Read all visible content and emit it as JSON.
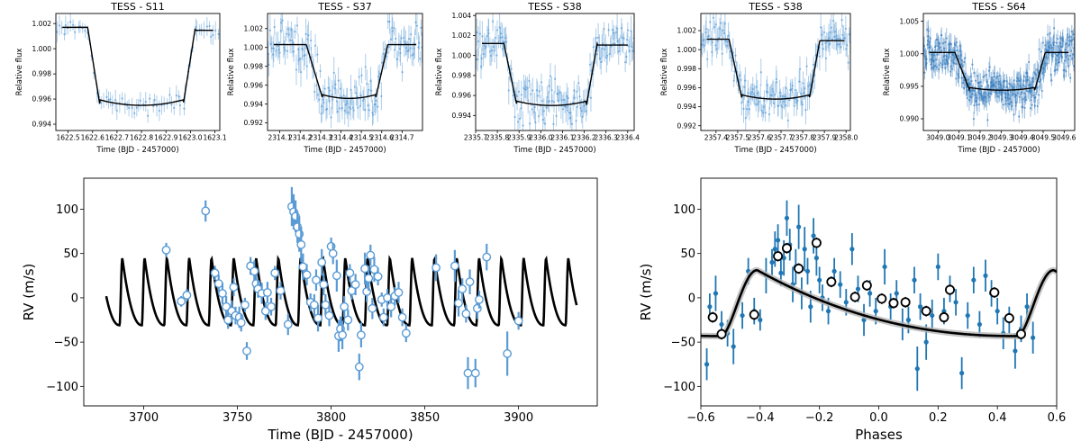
{
  "figure": {
    "description_label": "TESS transit light curves and radial velocity fits"
  },
  "chart_data": [
    {
      "id": "lc_s11",
      "type": "scatter",
      "title": "TESS - S11",
      "xlabel": "Time (BJD - 2457000)",
      "ylabel": "Relative flux",
      "xlim": [
        1622.45,
        1623.12
      ],
      "ylim": [
        0.9935,
        1.0028
      ],
      "xticks": [
        1622.5,
        1622.6,
        1622.7,
        1622.8,
        1622.9,
        1623.0,
        1623.1
      ],
      "xtick_labels": [
        "1622.5",
        "1622.6",
        "1622.7",
        "1622.8",
        "1622.9",
        "1623.0",
        "1623.1"
      ],
      "yticks": [
        0.994,
        0.996,
        0.998,
        1.0,
        1.002
      ],
      "ytick_labels": [
        "0.994",
        "0.996",
        "0.998",
        "1.000",
        "1.002"
      ],
      "model": {
        "baseline": 1.0017,
        "depth": 0.0062,
        "t1": 1622.58,
        "t2": 1622.63,
        "t3": 1622.97,
        "t4": 1623.02,
        "slope": -0.0012
      },
      "data_density": 70,
      "noise": 0.00035,
      "err": 0.0006,
      "marker_color": "#5a9bd5"
    },
    {
      "id": "lc_s37",
      "type": "scatter",
      "title": "TESS - S37",
      "xlabel": "Time (BJD - 2457000)",
      "ylabel": "Relative flux",
      "xlim": [
        2314.04,
        2314.8
      ],
      "ylim": [
        0.9912,
        1.0036
      ],
      "xticks": [
        2314.1,
        2314.2,
        2314.3,
        2314.4,
        2314.5,
        2314.6,
        2314.7
      ],
      "xtick_labels": [
        "2314.1",
        "2314.2",
        "2314.3",
        "2314.4",
        "2314.5",
        "2314.6",
        "2314.7"
      ],
      "yticks": [
        0.992,
        0.994,
        0.996,
        0.998,
        1.0,
        1.002
      ],
      "ytick_labels": [
        "0.992",
        "0.994",
        "0.996",
        "0.998",
        "1.000",
        "1.002"
      ],
      "model": {
        "baseline": 1.0003,
        "depth": 0.0057,
        "t1": 2314.23,
        "t2": 2314.31,
        "t3": 2314.57,
        "t4": 2314.63,
        "slope": 0.0
      },
      "data_density": 160,
      "noise": 0.0012,
      "err": 0.0012,
      "marker_color": "#5a9bd5"
    },
    {
      "id": "lc_s38a",
      "type": "scatter",
      "title": "TESS - S38",
      "xlabel": "Time (BJD - 2457000)",
      "ylabel": "Relative flux",
      "xlim": [
        2335.7,
        2336.43
      ],
      "ylim": [
        0.9925,
        1.0042
      ],
      "xticks": [
        2335.7,
        2335.8,
        2335.9,
        2336.0,
        2336.1,
        2336.2,
        2336.3,
        2336.4
      ],
      "xtick_labels": [
        "2335.7",
        "2335.8",
        "2335.9",
        "2336.0",
        "2336.1",
        "2336.2",
        "2336.3",
        "2336.4"
      ],
      "yticks": [
        0.994,
        0.996,
        0.998,
        1.0,
        1.002,
        1.004
      ],
      "ytick_labels": [
        "0.994",
        "0.996",
        "0.998",
        "1.000",
        "1.002",
        "1.004"
      ],
      "model": {
        "baseline": 1.0012,
        "depth": 0.0062,
        "t1": 2335.83,
        "t2": 2335.89,
        "t3": 2336.21,
        "t4": 2336.26,
        "slope": -0.0008
      },
      "data_density": 170,
      "noise": 0.0011,
      "err": 0.0011,
      "marker_color": "#5a9bd5"
    },
    {
      "id": "lc_s38b",
      "type": "scatter",
      "title": "TESS - S38",
      "xlabel": "Time (BJD - 2457000)",
      "ylabel": "Relative flux",
      "xlim": [
        2357.33,
        2358.02
      ],
      "ylim": [
        0.9915,
        1.0038
      ],
      "xticks": [
        2357.4,
        2357.5,
        2357.6,
        2357.7,
        2357.8,
        2357.9,
        2358.0
      ],
      "xtick_labels": [
        "2357.4",
        "2357.5",
        "2357.6",
        "2357.7",
        "2357.8",
        "2357.9",
        "2358.0"
      ],
      "yticks": [
        0.992,
        0.994,
        0.996,
        0.998,
        1.0,
        1.002
      ],
      "ytick_labels": [
        "0.992",
        "0.994",
        "0.996",
        "0.998",
        "1.000",
        "1.002"
      ],
      "model": {
        "baseline": 1.0011,
        "depth": 0.0063,
        "t1": 2357.46,
        "t2": 2357.52,
        "t3": 2357.83,
        "t4": 2357.88,
        "slope": -0.0008
      },
      "data_density": 170,
      "noise": 0.0011,
      "err": 0.0011,
      "marker_color": "#5a9bd5"
    },
    {
      "id": "lc_s64",
      "type": "scatter",
      "title": "TESS - S64",
      "xlabel": "Time (BJD - 2457000)",
      "ylabel": "Relative flux",
      "xlim": [
        3048.93,
        3049.65
      ],
      "ylim": [
        0.9882,
        1.0062
      ],
      "xticks": [
        3049.0,
        3049.1,
        3049.2,
        3049.3,
        3049.4,
        3049.5,
        3049.6
      ],
      "xtick_labels": [
        "3049.0",
        "3049.1",
        "3049.2",
        "3049.3",
        "3049.4",
        "3049.5",
        "3049.6"
      ],
      "yticks": [
        0.99,
        0.995,
        1.0,
        1.005
      ],
      "ytick_labels": [
        "0.990",
        "0.995",
        "1.000",
        "1.005"
      ],
      "model": {
        "baseline": 1.0002,
        "depth": 0.0058,
        "t1": 3049.08,
        "t2": 3049.15,
        "t3": 3049.46,
        "t4": 3049.51,
        "slope": 0.0
      },
      "data_density": 420,
      "noise": 0.0017,
      "err": 0.0012,
      "marker_color": "#3c7fbf"
    },
    {
      "id": "rv_time",
      "type": "scatter",
      "title": "",
      "xlabel": "Time (BJD - 2457000)",
      "ylabel": "RV (m/s)",
      "xlim": [
        3668,
        3942
      ],
      "ylim": [
        -122,
        135
      ],
      "xticks": [
        3700,
        3750,
        3800,
        3850,
        3900
      ],
      "xtick_labels": [
        "3700",
        "3750",
        "3800",
        "3850",
        "3900"
      ],
      "yticks": [
        -100,
        -50,
        0,
        50,
        100
      ],
      "ytick_labels": [
        "−100",
        "−50",
        "0",
        "50",
        "100"
      ],
      "model": {
        "period": 11.9,
        "t_peak": 3690.0,
        "amp": 38,
        "offset": 7,
        "xstart": 3680,
        "xend": 3931
      },
      "points": [
        [
          3712,
          54,
          8
        ],
        [
          3720,
          -4,
          6
        ],
        [
          3723,
          3,
          7
        ],
        [
          3733,
          98,
          12
        ],
        [
          3738,
          28,
          8
        ],
        [
          3740,
          16,
          10
        ],
        [
          3742,
          5,
          12
        ],
        [
          3744,
          -10,
          12
        ],
        [
          3745,
          -25,
          10
        ],
        [
          3747,
          -15,
          12
        ],
        [
          3748,
          12,
          10
        ],
        [
          3749,
          -20,
          10
        ],
        [
          3751,
          -22,
          12
        ],
        [
          3752,
          -28,
          10
        ],
        [
          3754,
          -8,
          8
        ],
        [
          3755,
          -60,
          10
        ],
        [
          3757,
          36,
          10
        ],
        [
          3759,
          30,
          12
        ],
        [
          3760,
          16,
          10
        ],
        [
          3761,
          10,
          10
        ],
        [
          3763,
          5,
          12
        ],
        [
          3765,
          -15,
          10
        ],
        [
          3766,
          6,
          12
        ],
        [
          3768,
          -10,
          10
        ],
        [
          3770,
          28,
          8
        ],
        [
          3773,
          8,
          10
        ],
        [
          3777,
          -30,
          12
        ],
        [
          3779,
          103,
          22
        ],
        [
          3780,
          97,
          20
        ],
        [
          3781,
          92,
          18
        ],
        [
          3782,
          80,
          18
        ],
        [
          3783,
          72,
          20
        ],
        [
          3784,
          60,
          20
        ],
        [
          3785,
          35,
          15
        ],
        [
          3787,
          26,
          12
        ],
        [
          3789,
          -5,
          10
        ],
        [
          3791,
          -8,
          12
        ],
        [
          3792,
          20,
          12
        ],
        [
          3793,
          -23,
          15
        ],
        [
          3795,
          40,
          15
        ],
        [
          3796,
          15,
          12
        ],
        [
          3797,
          -8,
          12
        ],
        [
          3799,
          -20,
          12
        ],
        [
          3800,
          58,
          10
        ],
        [
          3801,
          50,
          12
        ],
        [
          3803,
          25,
          18
        ],
        [
          3804,
          -43,
          18
        ],
        [
          3805,
          -35,
          14
        ],
        [
          3806,
          -42,
          16
        ],
        [
          3807,
          -10,
          12
        ],
        [
          3809,
          -25,
          12
        ],
        [
          3810,
          28,
          10
        ],
        [
          3811,
          8,
          10
        ],
        [
          3813,
          15,
          12
        ],
        [
          3815,
          -78,
          15
        ],
        [
          3816,
          -42,
          14
        ],
        [
          3818,
          33,
          18
        ],
        [
          3819,
          7,
          12
        ],
        [
          3820,
          22,
          14
        ],
        [
          3821,
          48,
          12
        ],
        [
          3822,
          -12,
          12
        ],
        [
          3823,
          32,
          14
        ],
        [
          3825,
          24,
          10
        ],
        [
          3827,
          -2,
          8
        ],
        [
          3828,
          -22,
          10
        ],
        [
          3830,
          0,
          10
        ],
        [
          3832,
          -10,
          12
        ],
        [
          3834,
          2,
          10
        ],
        [
          3836,
          6,
          12
        ],
        [
          3838,
          -22,
          10
        ],
        [
          3840,
          -40,
          10
        ],
        [
          3856,
          34,
          15
        ],
        [
          3866,
          36,
          18
        ],
        [
          3868,
          -6,
          15
        ],
        [
          3870,
          10,
          12
        ],
        [
          3872,
          -18,
          10
        ],
        [
          3873,
          -85,
          18
        ],
        [
          3874,
          18,
          14
        ],
        [
          3877,
          -85,
          16
        ],
        [
          3878,
          -12,
          12
        ],
        [
          3879,
          -2,
          10
        ],
        [
          3883,
          46,
          15
        ],
        [
          3894,
          -63,
          25
        ],
        [
          3900,
          -26,
          10
        ]
      ],
      "marker_color": "#5a9bd5"
    },
    {
      "id": "rv_phase",
      "type": "scatter",
      "title": "",
      "xlabel": "Phases",
      "ylabel": "RV (m/s)",
      "xlim": [
        -0.6,
        0.6
      ],
      "ylim": [
        -122,
        135
      ],
      "xticks": [
        -0.6,
        -0.4,
        -0.2,
        0.0,
        0.2,
        0.4,
        0.6
      ],
      "xtick_labels": [
        "−0.6",
        "−0.4",
        "−0.2",
        "0.0",
        "0.2",
        "0.4",
        "0.6"
      ],
      "yticks": [
        -100,
        -50,
        0,
        50,
        100
      ],
      "ytick_labels": [
        "−100",
        "−50",
        "0",
        "50",
        "100"
      ],
      "model": {
        "peak_phase": -0.29,
        "amp": 38,
        "offset": 7
      },
      "points": [
        [
          -0.58,
          -75,
          18
        ],
        [
          -0.57,
          -10,
          15
        ],
        [
          -0.55,
          5,
          20
        ],
        [
          -0.53,
          -30,
          15
        ],
        [
          -0.51,
          -40,
          15
        ],
        [
          -0.49,
          -55,
          20
        ],
        [
          -0.46,
          -20,
          15
        ],
        [
          -0.44,
          30,
          15
        ],
        [
          -0.42,
          -15,
          15
        ],
        [
          -0.4,
          -25,
          12
        ],
        [
          -0.38,
          25,
          20
        ],
        [
          -0.36,
          40,
          15
        ],
        [
          -0.35,
          55,
          20
        ],
        [
          -0.34,
          65,
          18
        ],
        [
          -0.33,
          28,
          15
        ],
        [
          -0.32,
          45,
          20
        ],
        [
          -0.31,
          90,
          20
        ],
        [
          -0.3,
          60,
          18
        ],
        [
          -0.29,
          15,
          20
        ],
        [
          -0.28,
          35,
          20
        ],
        [
          -0.27,
          80,
          25
        ],
        [
          -0.26,
          5,
          18
        ],
        [
          -0.25,
          55,
          25
        ],
        [
          -0.24,
          30,
          15
        ],
        [
          -0.23,
          -10,
          18
        ],
        [
          -0.22,
          70,
          20
        ],
        [
          -0.21,
          45,
          20
        ],
        [
          -0.2,
          20,
          15
        ],
        [
          -0.19,
          0,
          15
        ],
        [
          -0.17,
          -15,
          15
        ],
        [
          -0.15,
          30,
          15
        ],
        [
          -0.13,
          15,
          15
        ],
        [
          -0.11,
          -5,
          15
        ],
        [
          -0.09,
          55,
          18
        ],
        [
          -0.07,
          10,
          15
        ],
        [
          -0.05,
          -25,
          18
        ],
        [
          -0.03,
          5,
          15
        ],
        [
          -0.01,
          -15,
          15
        ],
        [
          0.02,
          35,
          20
        ],
        [
          0.04,
          -10,
          15
        ],
        [
          0.06,
          5,
          15
        ],
        [
          0.08,
          -30,
          18
        ],
        [
          0.1,
          -25,
          15
        ],
        [
          0.12,
          20,
          15
        ],
        [
          0.13,
          -80,
          25
        ],
        [
          0.14,
          -10,
          15
        ],
        [
          0.16,
          -50,
          20
        ],
        [
          0.18,
          -20,
          18
        ],
        [
          0.2,
          35,
          15
        ],
        [
          0.22,
          -15,
          15
        ],
        [
          0.24,
          10,
          15
        ],
        [
          0.26,
          -5,
          15
        ],
        [
          0.28,
          -85,
          18
        ],
        [
          0.3,
          -20,
          15
        ],
        [
          0.32,
          20,
          15
        ],
        [
          0.34,
          -30,
          15
        ],
        [
          0.36,
          25,
          18
        ],
        [
          0.38,
          5,
          15
        ],
        [
          0.4,
          -15,
          15
        ],
        [
          0.42,
          -40,
          18
        ],
        [
          0.44,
          -25,
          15
        ],
        [
          0.46,
          -60,
          20
        ],
        [
          0.48,
          -35,
          15
        ],
        [
          0.5,
          -10,
          15
        ],
        [
          0.52,
          -45,
          18
        ]
      ],
      "binned": [
        [
          -0.56,
          -22,
          6
        ],
        [
          -0.53,
          -41,
          6
        ],
        [
          -0.42,
          -19,
          6
        ],
        [
          -0.34,
          47,
          6
        ],
        [
          -0.31,
          56,
          6
        ],
        [
          -0.27,
          33,
          6
        ],
        [
          -0.21,
          62,
          6
        ],
        [
          -0.16,
          18,
          6
        ],
        [
          -0.08,
          1,
          6
        ],
        [
          -0.04,
          14,
          6
        ],
        [
          0.01,
          -1,
          6
        ],
        [
          0.05,
          -6,
          6
        ],
        [
          0.09,
          -5,
          6
        ],
        [
          0.16,
          -15,
          6
        ],
        [
          0.22,
          -22,
          6
        ],
        [
          0.24,
          9,
          6
        ],
        [
          0.39,
          6,
          6
        ],
        [
          0.44,
          -23,
          6
        ],
        [
          0.48,
          -41,
          6
        ]
      ],
      "marker_color": "#1f77b4"
    }
  ]
}
